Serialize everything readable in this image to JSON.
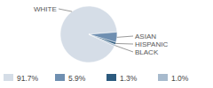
{
  "chart_data": {
    "type": "pie",
    "categories": [
      "WHITE",
      "ASIAN",
      "HISPANIC",
      "BLACK"
    ],
    "values": [
      91.7,
      5.9,
      1.3,
      1.0
    ],
    "value_labels": [
      "91.7%",
      "5.9%",
      "1.3%",
      "1.0%"
    ],
    "colors": [
      "#d5dde7",
      "#6f8fb1",
      "#2c5a7e",
      "#a7bacd"
    ],
    "legend": "bottom"
  }
}
